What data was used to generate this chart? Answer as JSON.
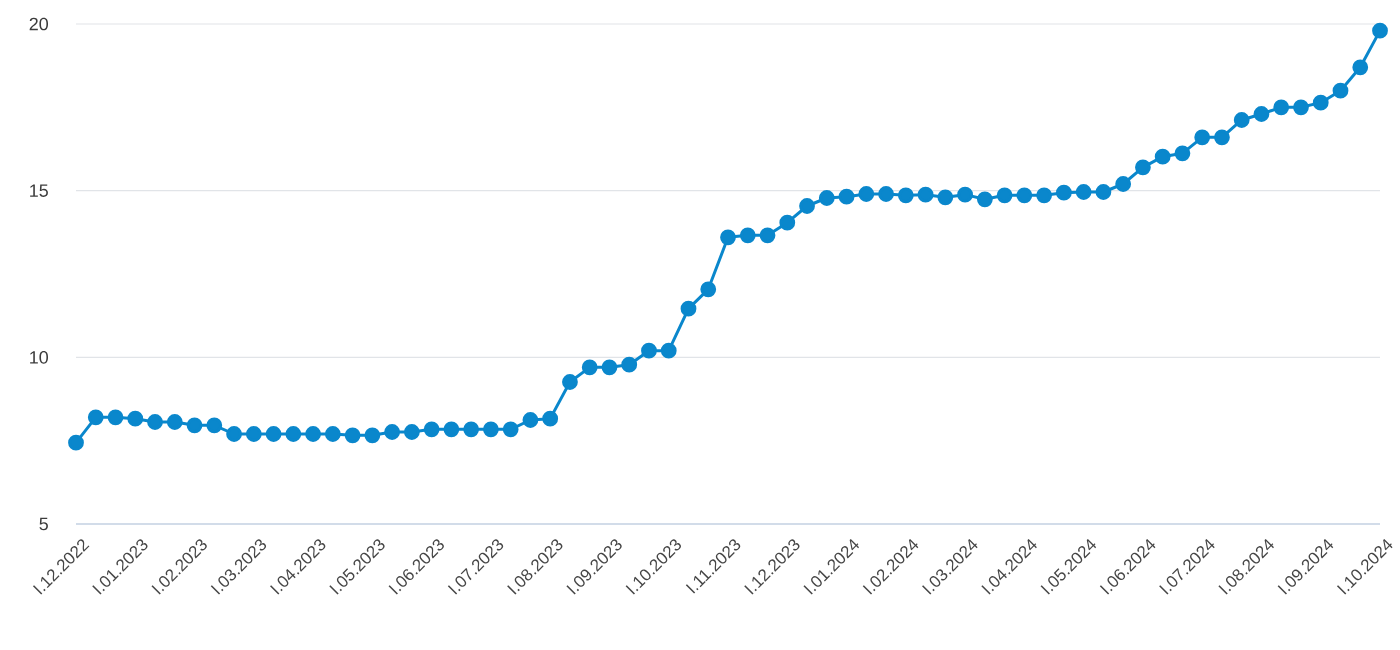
{
  "chart_data": {
    "type": "line",
    "categories": [
      "I.12.2022",
      null,
      null,
      "I.01.2023",
      null,
      null,
      "I.02.2023",
      null,
      null,
      "I.03.2023",
      null,
      null,
      "I.04.2023",
      null,
      null,
      "I.05.2023",
      null,
      null,
      "I.06.2023",
      null,
      null,
      "I.07.2023",
      null,
      null,
      "I.08.2023",
      null,
      null,
      "I.09.2023",
      null,
      null,
      "I.10.2023",
      null,
      null,
      "I.11.2023",
      null,
      null,
      "I.12.2023",
      null,
      null,
      "I.01.2024",
      null,
      null,
      "I.02.2024",
      null,
      null,
      "I.03.2024",
      null,
      null,
      "I.04.2024",
      null,
      null,
      "I.05.2024",
      null,
      null,
      "I.06.2024",
      null,
      null,
      "I.07.2024",
      null,
      null,
      "I.08.2024",
      null,
      null,
      "I.09.2024",
      null,
      null,
      "I.10.2024"
    ],
    "series": [
      {
        "color": "#0a87cc",
        "values": [
          7.44,
          8.2,
          8.2,
          8.16,
          8.06,
          8.06,
          7.96,
          7.96,
          7.7,
          7.7,
          7.7,
          7.7,
          7.7,
          7.7,
          7.66,
          7.66,
          7.76,
          7.76,
          7.84,
          7.84,
          7.84,
          7.84,
          7.84,
          8.12,
          8.16,
          9.26,
          9.7,
          9.7,
          9.78,
          10.2,
          10.2,
          11.46,
          12.04,
          13.6,
          13.66,
          13.66,
          14.04,
          14.54,
          14.78,
          14.82,
          14.9,
          14.9,
          14.86,
          14.88,
          14.8,
          14.88,
          14.74,
          14.86,
          14.86,
          14.86,
          14.94,
          14.96,
          14.96,
          15.2,
          15.7,
          16.02,
          16.12,
          16.6,
          16.6,
          17.12,
          17.3,
          17.5,
          17.5,
          17.64,
          18.0,
          18.7,
          19.8
        ]
      }
    ],
    "ylim": [
      5,
      20
    ],
    "yticks": [
      5,
      10,
      15,
      20
    ],
    "grid": "y",
    "marker": "circle",
    "line_style": "solid"
  }
}
